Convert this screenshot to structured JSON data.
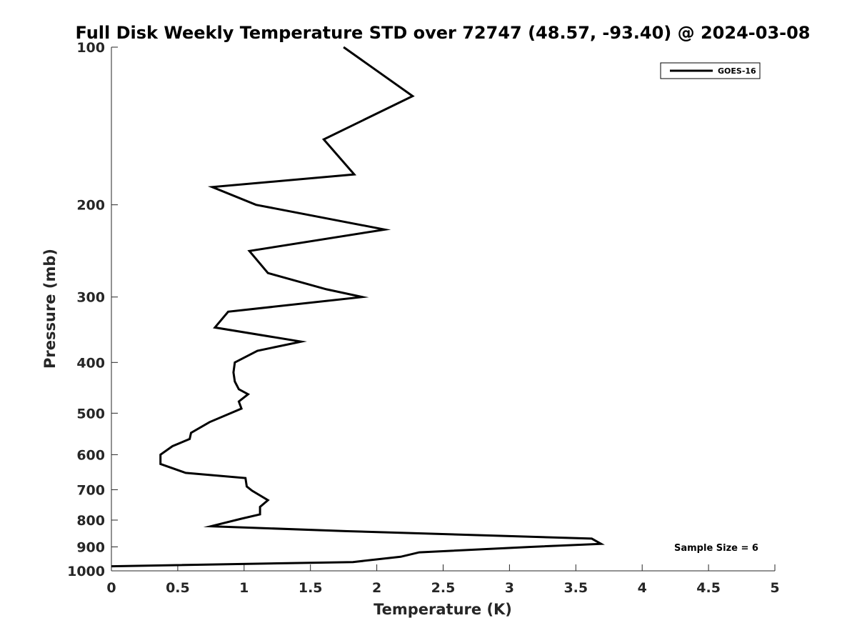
{
  "chart_data": {
    "type": "line",
    "title": "Full Disk Weekly Temperature STD over 72747 (48.57, -93.40) @ 2024-03-08",
    "xlabel": "Temperature (K)",
    "ylabel": "Pressure (mb)",
    "xlim": [
      0,
      5
    ],
    "ylim": [
      100,
      1000
    ],
    "yscale": "log",
    "y_reversed": true,
    "grid": false,
    "x_ticks": [
      0,
      0.5,
      1,
      1.5,
      2,
      2.5,
      3,
      3.5,
      4,
      4.5,
      5
    ],
    "x_tick_labels": [
      "0",
      "0.5",
      "1",
      "1.5",
      "2",
      "2.5",
      "3",
      "3.5",
      "4",
      "4.5",
      "5"
    ],
    "y_ticks": [
      100,
      200,
      300,
      400,
      500,
      600,
      700,
      800,
      900,
      1000
    ],
    "y_tick_labels": [
      "100",
      "200",
      "300",
      "400",
      "500",
      "600",
      "700",
      "800",
      "900",
      "1000"
    ],
    "legend_position": "top-right",
    "annotation": "Sample Size = 6",
    "series": [
      {
        "name": "GOES-16",
        "color": "#000000",
        "x": [
          1.75,
          2.27,
          1.6,
          1.83,
          0.76,
          1.09,
          2.06,
          1.04,
          1.18,
          1.62,
          1.89,
          0.88,
          0.78,
          1.43,
          1.1,
          0.93,
          0.92,
          0.93,
          0.96,
          1.03,
          0.96,
          0.98,
          0.74,
          0.6,
          0.59,
          0.46,
          0.37,
          0.37,
          0.56,
          1.01,
          1.02,
          1.06,
          1.18,
          1.12,
          1.12,
          0.98,
          0.75,
          1.78,
          3.62,
          3.69,
          3.16,
          2.32,
          2.18,
          1.82,
          0.0
        ],
        "y": [
          100,
          124,
          150,
          175,
          185,
          200,
          223,
          245,
          270,
          290,
          300,
          320,
          343,
          365,
          380,
          400,
          418,
          435,
          450,
          460,
          475,
          490,
          520,
          545,
          560,
          578,
          600,
          625,
          650,
          665,
          690,
          703,
          733,
          755,
          780,
          795,
          822,
          840,
          868,
          888,
          900,
          922,
          940,
          962,
          980
        ]
      }
    ]
  }
}
